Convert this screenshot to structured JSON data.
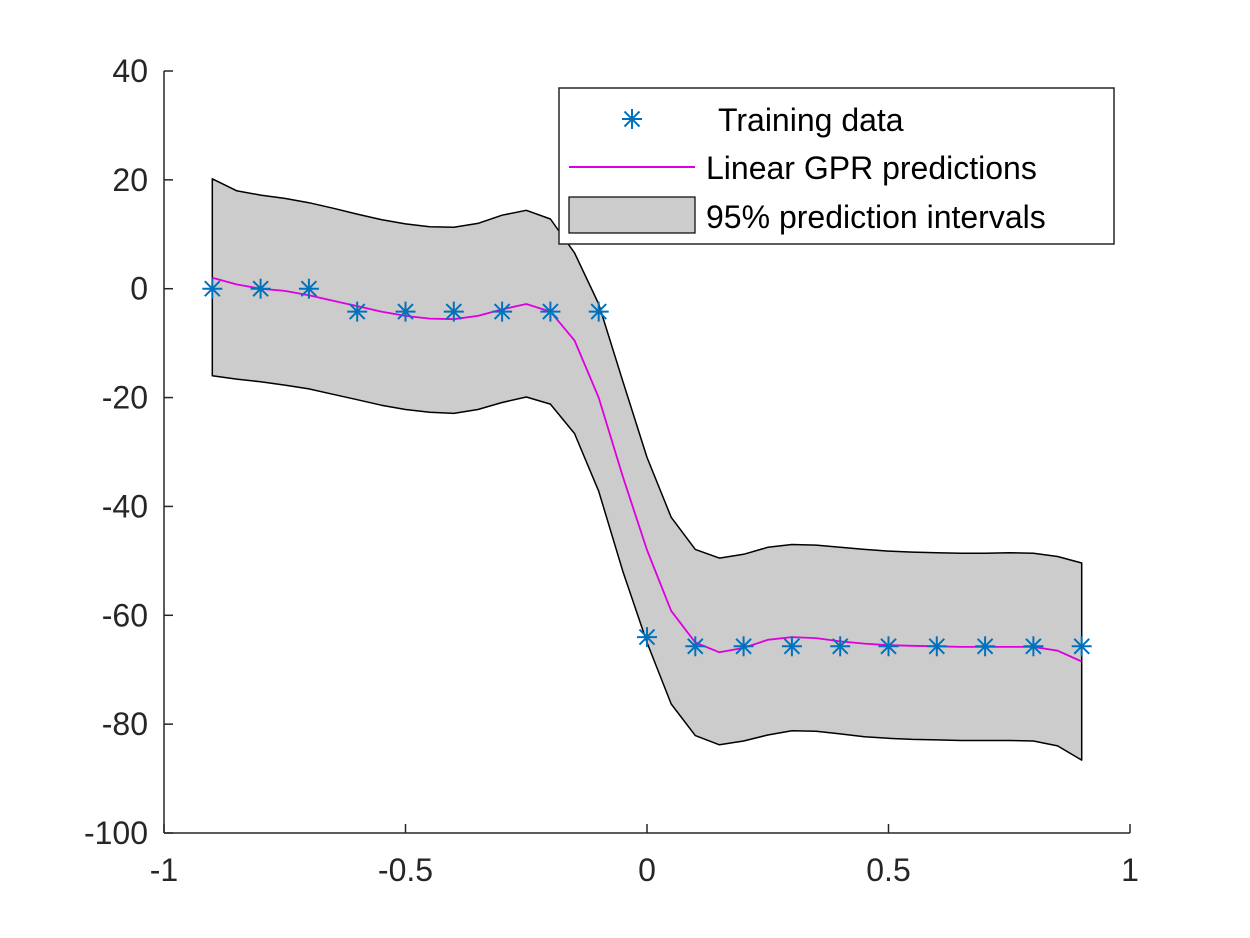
{
  "chart_data": {
    "type": "line",
    "title": "",
    "xlabel": "",
    "ylabel": "",
    "xlim": [
      -1,
      1
    ],
    "ylim": [
      -100,
      40
    ],
    "xticks": [
      -1,
      -0.5,
      0,
      0.5,
      1
    ],
    "xtick_labels": [
      "-1",
      "-0.5",
      "0",
      "0.5",
      "1"
    ],
    "yticks": [
      -100,
      -80,
      -60,
      -40,
      -20,
      0,
      20,
      40
    ],
    "ytick_labels": [
      "-100",
      "-80",
      "-60",
      "-40",
      "-20",
      "0",
      "20",
      "40"
    ],
    "grid": false,
    "legend_position": "top-right",
    "series": [
      {
        "name": "Training data",
        "kind": "scatter",
        "marker": "asterisk",
        "color": "#0072BD",
        "x": [
          -0.9,
          -0.8,
          -0.7,
          -0.6,
          -0.5,
          -0.4,
          -0.3,
          -0.2,
          -0.1,
          0.0,
          0.1,
          0.2,
          0.3,
          0.4,
          0.5,
          0.6,
          0.7,
          0.8,
          0.9
        ],
        "y": [
          0,
          0,
          0,
          -4.2,
          -4.2,
          -4.2,
          -4.2,
          -4.2,
          -4.2,
          -64,
          -65.7,
          -65.7,
          -65.7,
          -65.7,
          -65.7,
          -65.7,
          -65.7,
          -65.7,
          -65.7
        ]
      },
      {
        "name": "Linear GPR predictions",
        "kind": "line",
        "color": "#DD00DD",
        "x": [
          -0.9,
          -0.85,
          -0.8,
          -0.75,
          -0.7,
          -0.65,
          -0.6,
          -0.55,
          -0.5,
          -0.45,
          -0.4,
          -0.35,
          -0.3,
          -0.25,
          -0.2,
          -0.15,
          -0.1,
          -0.05,
          0.0,
          0.05,
          0.1,
          0.15,
          0.2,
          0.25,
          0.3,
          0.35,
          0.4,
          0.45,
          0.5,
          0.55,
          0.6,
          0.65,
          0.7,
          0.75,
          0.8,
          0.85,
          0.9
        ],
        "y": [
          2,
          0.8,
          0,
          -0.4,
          -1.2,
          -2.2,
          -3.2,
          -4.2,
          -5,
          -5.5,
          -5.6,
          -5,
          -3.8,
          -2.8,
          -4.2,
          -9.5,
          -20,
          -34.5,
          -48,
          -59.2,
          -65,
          -66.8,
          -66,
          -64.5,
          -64,
          -64.2,
          -64.8,
          -65.2,
          -65.5,
          -65.6,
          -65.7,
          -65.8,
          -65.8,
          -65.8,
          -65.8,
          -66.5,
          -68.5
        ]
      },
      {
        "name": "95% prediction intervals",
        "kind": "band",
        "color": "#CCCCCC",
        "x": [
          -0.9,
          -0.85,
          -0.8,
          -0.75,
          -0.7,
          -0.65,
          -0.6,
          -0.55,
          -0.5,
          -0.45,
          -0.4,
          -0.35,
          -0.3,
          -0.25,
          -0.2,
          -0.15,
          -0.1,
          -0.05,
          0.0,
          0.05,
          0.1,
          0.15,
          0.2,
          0.25,
          0.3,
          0.35,
          0.4,
          0.45,
          0.5,
          0.55,
          0.6,
          0.65,
          0.7,
          0.75,
          0.8,
          0.85,
          0.9
        ],
        "upper": [
          20.2,
          18,
          17.2,
          16.6,
          15.8,
          14.8,
          13.7,
          12.7,
          11.9,
          11.4,
          11.3,
          12,
          13.5,
          14.4,
          12.8,
          6.6,
          -2.8,
          -17,
          -31,
          -42,
          -47.9,
          -49.5,
          -48.8,
          -47.5,
          -47,
          -47.1,
          -47.5,
          -47.9,
          -48.2,
          -48.4,
          -48.5,
          -48.6,
          -48.6,
          -48.5,
          -48.6,
          -49.2,
          -50.4
        ],
        "lower": [
          -16,
          -16.6,
          -17.1,
          -17.7,
          -18.4,
          -19.4,
          -20.4,
          -21.4,
          -22.2,
          -22.7,
          -22.9,
          -22.2,
          -20.9,
          -19.9,
          -21.2,
          -26.6,
          -37.2,
          -51.9,
          -65,
          -76.3,
          -82.1,
          -83.8,
          -83.1,
          -82,
          -81.2,
          -81.3,
          -81.8,
          -82.3,
          -82.6,
          -82.8,
          -82.9,
          -83,
          -83,
          -83,
          -83.1,
          -84,
          -86.6
        ]
      }
    ]
  }
}
